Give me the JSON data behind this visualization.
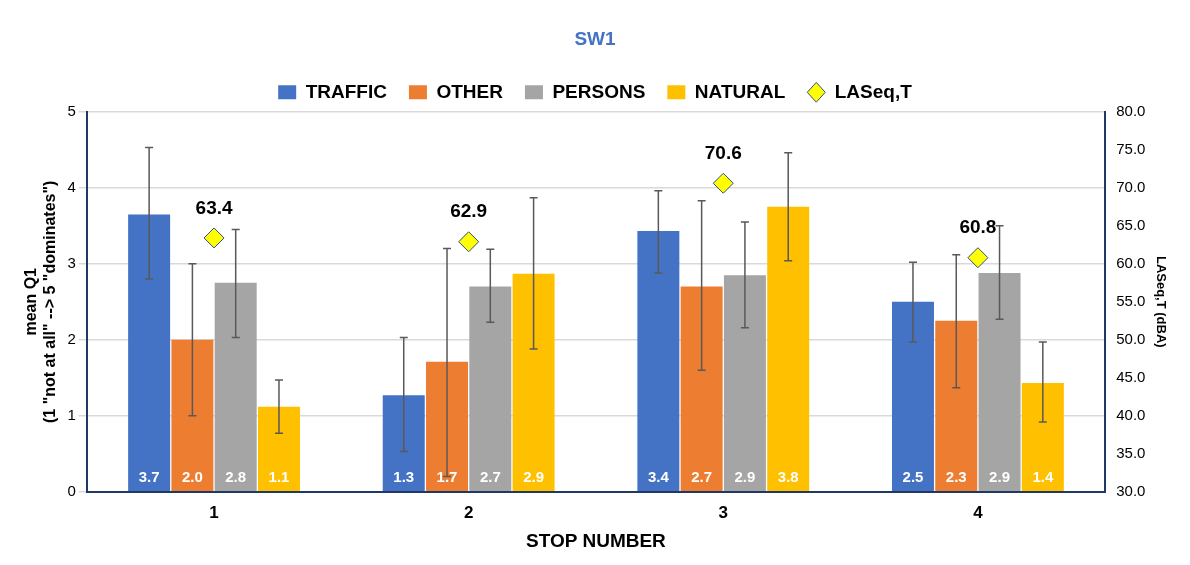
{
  "chart_data": {
    "type": "bar",
    "title": "SW1",
    "xlabel": "STOP NUMBER",
    "ylabel": "mean Q1\n(1 \"not at all\" --> 5 \"dominates\")",
    "y2label": "LASeq,T (dBA)",
    "categories": [
      "1",
      "2",
      "3",
      "4"
    ],
    "series": [
      {
        "name": "TRAFFIC",
        "color": "#4472c4",
        "values": [
          3.65,
          1.27,
          3.43,
          2.5
        ],
        "errors": [
          [
            2.8,
            4.53
          ],
          [
            0.53,
            2.03
          ],
          [
            2.88,
            3.96
          ],
          [
            1.97,
            3.02
          ]
        ],
        "value_labels": [
          "3.7",
          "1.3",
          "3.4",
          "2.5"
        ]
      },
      {
        "name": "OTHER",
        "color": "#ed7d31",
        "values": [
          2.0,
          1.71,
          2.7,
          2.25
        ],
        "errors": [
          [
            1.0,
            3.0
          ],
          [
            0.2,
            3.2
          ],
          [
            1.6,
            3.83
          ],
          [
            1.37,
            3.12
          ]
        ],
        "value_labels": [
          "2.0",
          "1.7",
          "2.7",
          "2.3"
        ]
      },
      {
        "name": "PERSONS",
        "color": "#a5a5a5",
        "values": [
          2.75,
          2.7,
          2.85,
          2.88
        ],
        "errors": [
          [
            2.03,
            3.45
          ],
          [
            2.23,
            3.19
          ],
          [
            2.16,
            3.55
          ],
          [
            2.27,
            3.5
          ]
        ],
        "value_labels": [
          "2.8",
          "2.7",
          "2.9",
          "2.9"
        ]
      },
      {
        "name": "NATURAL",
        "color": "#ffc000",
        "values": [
          1.12,
          2.87,
          3.75,
          1.43
        ],
        "errors": [
          [
            0.77,
            1.47
          ],
          [
            1.88,
            3.87
          ],
          [
            3.04,
            4.46
          ],
          [
            0.92,
            1.97
          ]
        ],
        "value_labels": [
          "1.1",
          "2.9",
          "3.8",
          "1.4"
        ]
      },
      {
        "name": "LASeq,T",
        "type": "scatter",
        "axis": "y2",
        "marker": "diamond",
        "color": "#ffff00",
        "x": [
          "1",
          "2",
          "3",
          "4"
        ],
        "values": [
          63.4,
          62.9,
          70.6,
          60.8
        ],
        "value_labels": [
          "63.4",
          "62.9",
          "70.6",
          "60.8"
        ]
      }
    ],
    "ylim": [
      0,
      5
    ],
    "yticks": [
      0,
      1,
      2,
      3,
      4,
      5
    ],
    "y2lim": [
      30,
      80
    ],
    "y2ticks": [
      {
        "value": 30,
        "label": "30.0"
      },
      {
        "value": 35,
        "label": "35.0"
      },
      {
        "value": 40,
        "label": "40.0"
      },
      {
        "value": 45,
        "label": "45.0"
      },
      {
        "value": 50,
        "label": "50.0"
      },
      {
        "value": 55,
        "label": "55.0"
      },
      {
        "value": 60,
        "label": "60.0"
      },
      {
        "value": 65,
        "label": "65.0"
      },
      {
        "value": 70,
        "label": "70.0"
      },
      {
        "value": 75,
        "label": "75.0"
      },
      {
        "value": 80,
        "label": "80.0"
      }
    ],
    "grid": "y",
    "legend": "top"
  }
}
